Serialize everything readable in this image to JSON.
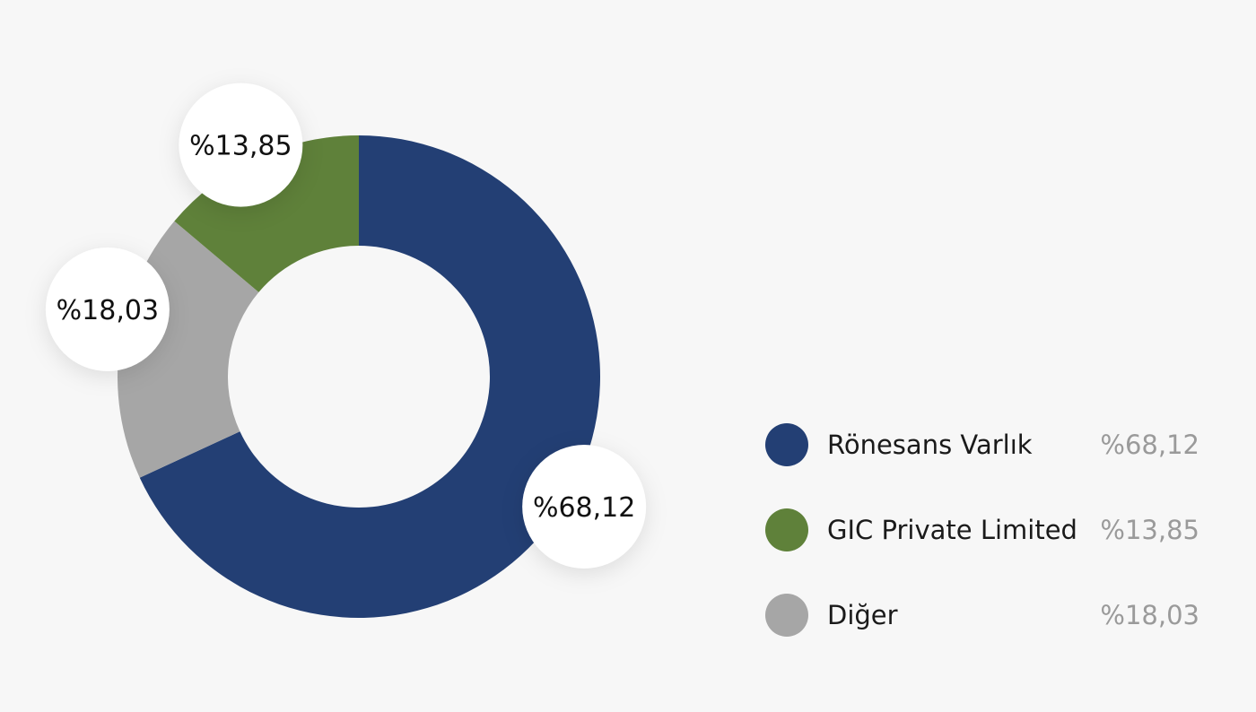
{
  "chart_data": {
    "type": "pie",
    "donut": true,
    "categories": [
      "Rönesans Varlık",
      "GIC Private Limited",
      "Diğer"
    ],
    "values": [
      68.12,
      13.85,
      18.03
    ],
    "value_labels": [
      "%68,12",
      "%13,85",
      "%18,03"
    ],
    "colors": [
      "#233f74",
      "#5f813a",
      "#a6a6a6"
    ],
    "legend_placement": "right"
  },
  "legend": [
    {
      "label": "Rönesans Varlık",
      "value": "%68,12",
      "color": "#233f74"
    },
    {
      "label": "GIC Private Limited",
      "value": "%13,85",
      "color": "#5f813a"
    },
    {
      "label": "Diğer",
      "value": "%18,03",
      "color": "#a6a6a6"
    }
  ]
}
